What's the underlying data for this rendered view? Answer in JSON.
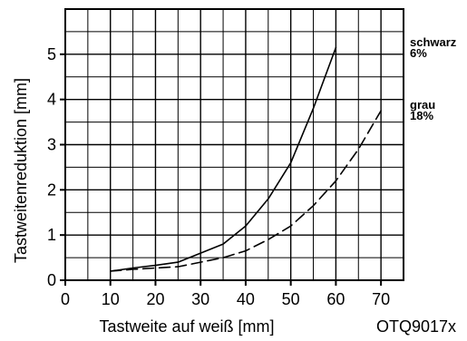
{
  "chart_data": {
    "type": "line",
    "xlabel": "Tastweite auf weiß [mm]",
    "ylabel": "Tastweitenreduktion [mm]",
    "code": "OTQ9017x",
    "xlim": [
      0,
      75
    ],
    "ylim": [
      0,
      6
    ],
    "xticks": [
      0,
      10,
      20,
      30,
      40,
      50,
      60,
      70
    ],
    "yticks": [
      0,
      1,
      2,
      3,
      4,
      5
    ],
    "grid": true,
    "series": [
      {
        "name_line1": "schwarz",
        "name_line2": "6%",
        "style": "solid",
        "x": [
          10,
          15,
          20,
          25,
          30,
          35,
          40,
          45,
          50,
          55,
          60
        ],
        "y": [
          0.2,
          0.27,
          0.33,
          0.4,
          0.6,
          0.8,
          1.2,
          1.8,
          2.6,
          3.8,
          5.15
        ]
      },
      {
        "name_line1": "grau",
        "name_line2": "18%",
        "style": "dashed",
        "x": [
          10,
          15,
          20,
          25,
          30,
          35,
          40,
          45,
          50,
          55,
          60,
          65,
          70
        ],
        "y": [
          0.2,
          0.24,
          0.27,
          0.3,
          0.4,
          0.5,
          0.65,
          0.9,
          1.2,
          1.65,
          2.2,
          2.9,
          3.75
        ]
      }
    ]
  }
}
